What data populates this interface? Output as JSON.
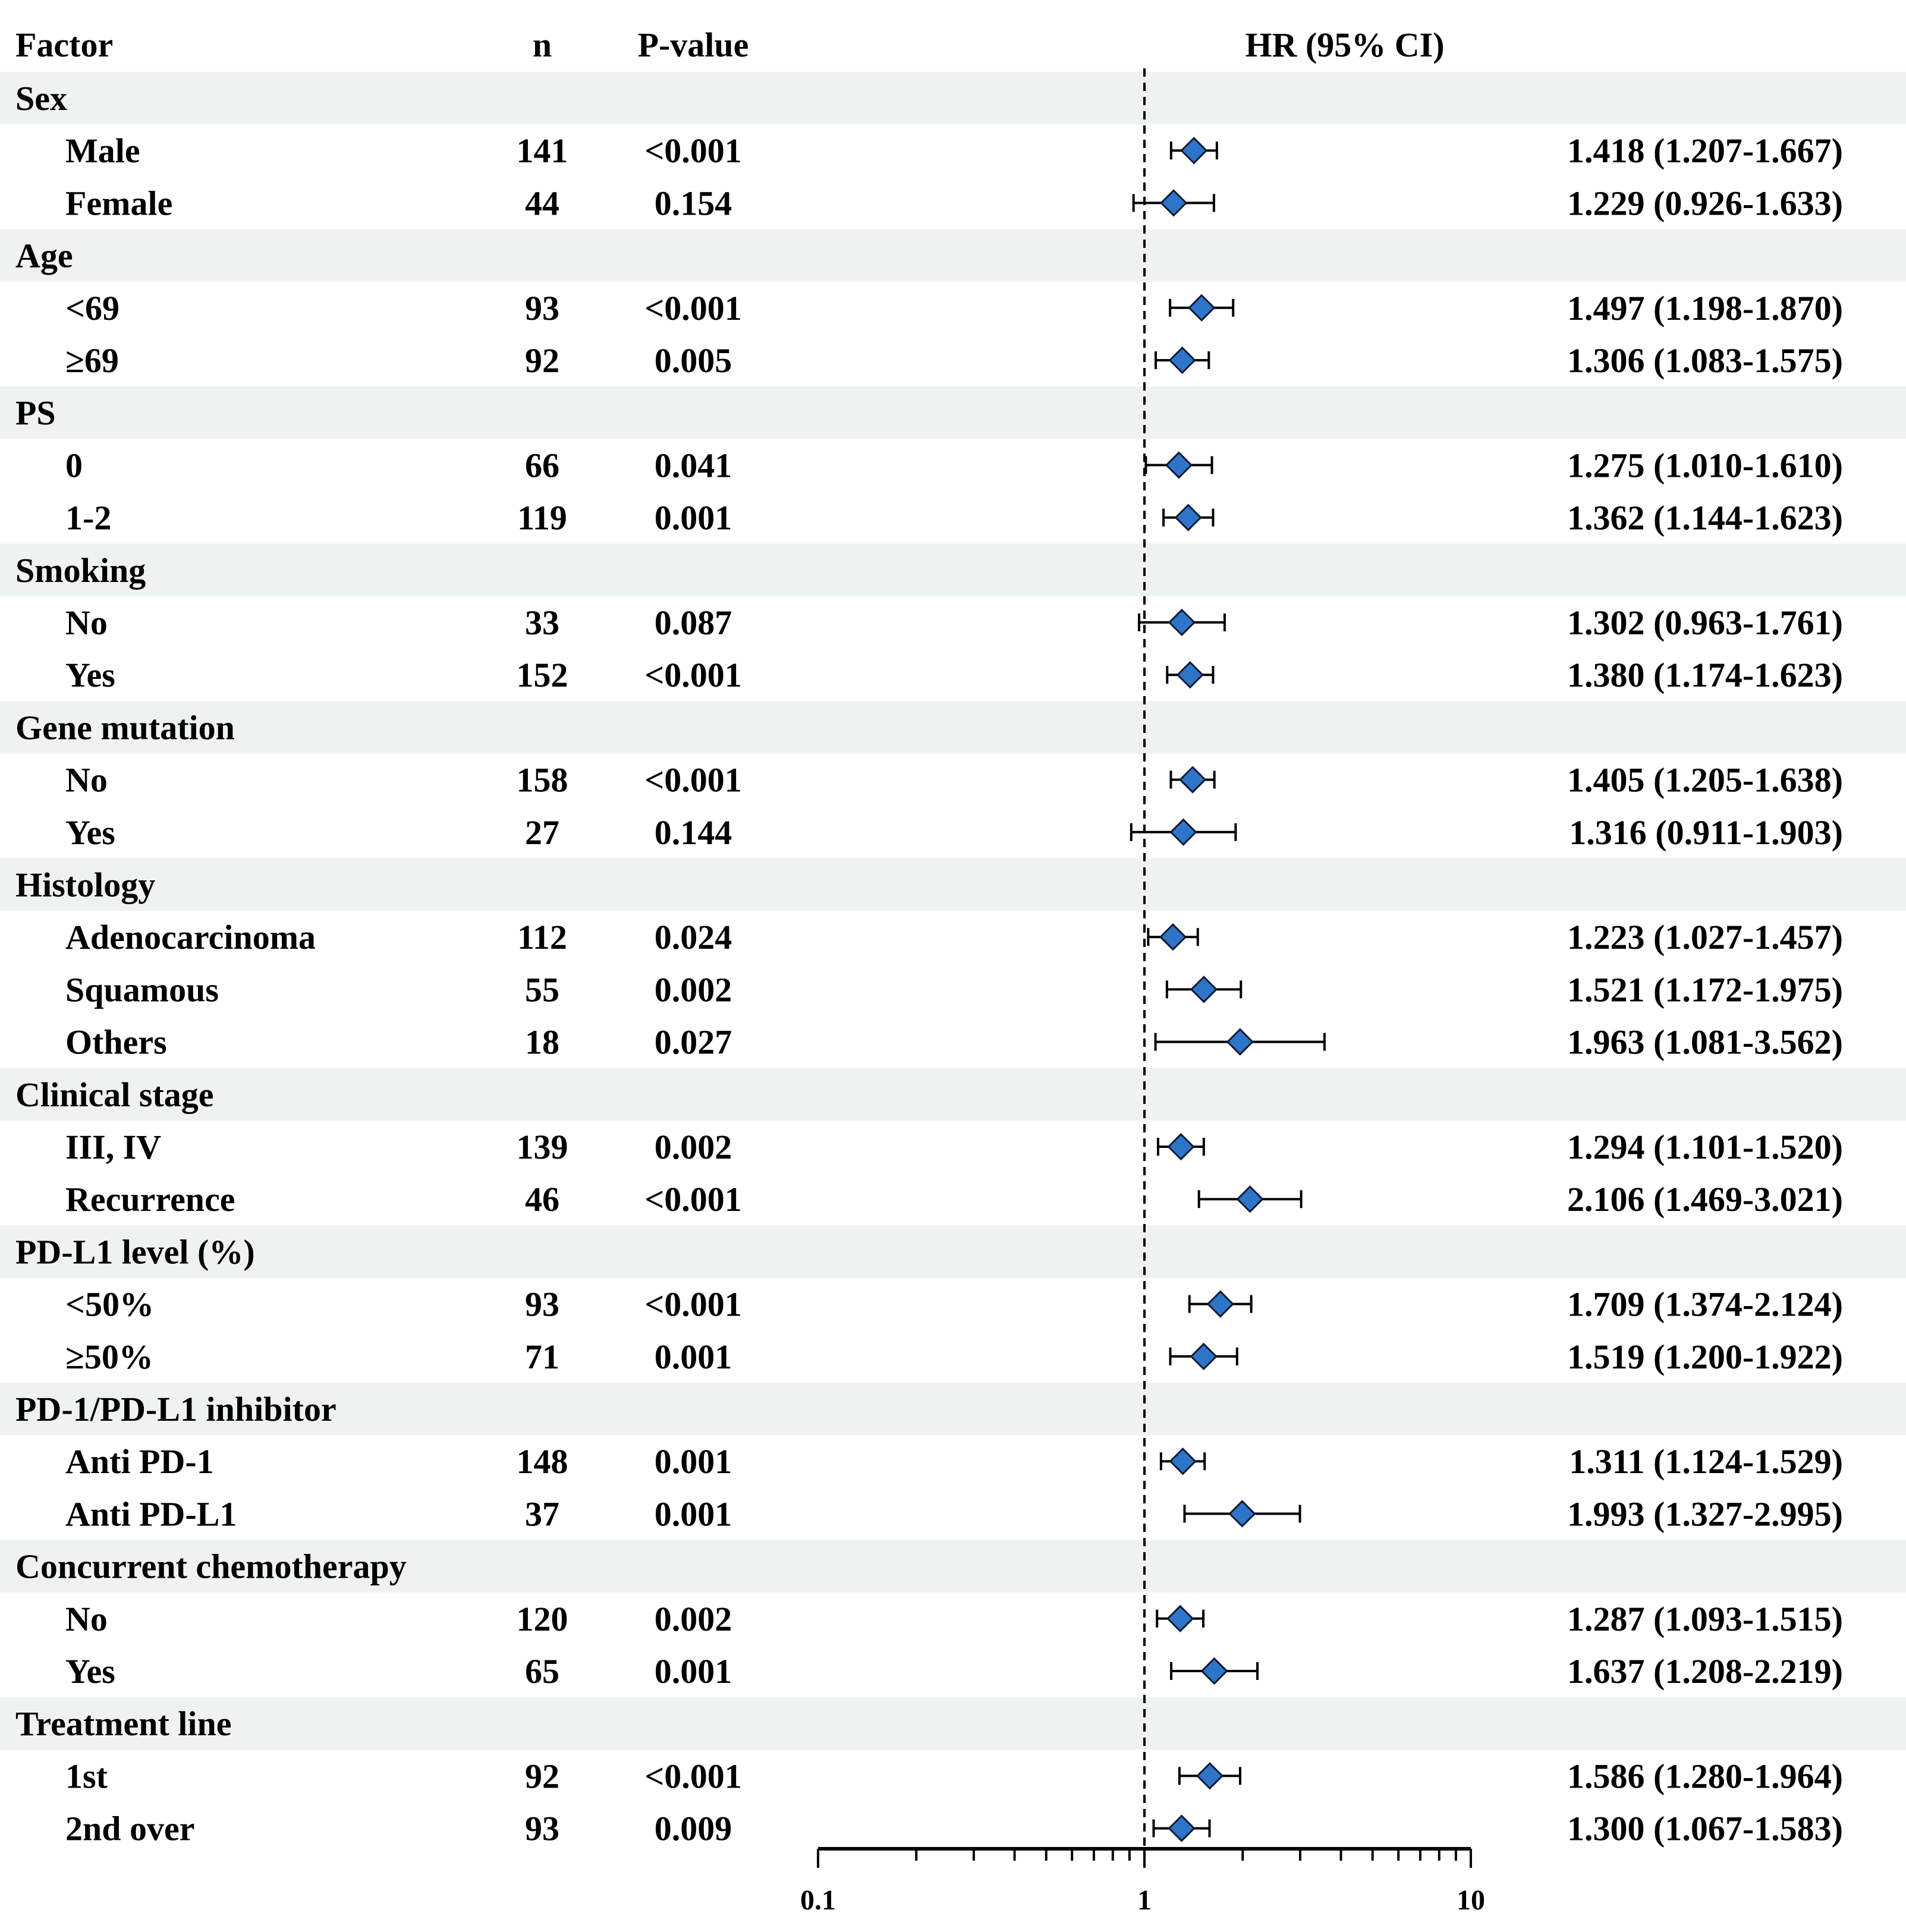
{
  "headers": {
    "factor": "Factor",
    "n": "n",
    "pvalue": "P-value",
    "hr": "HR (95% CI)"
  },
  "colors": {
    "band": "#eef2f1",
    "marker_fill": "#2e75c9",
    "marker_stroke": "#0a1a33",
    "line": "#000000"
  },
  "chart_data": {
    "type": "forest",
    "x_scale": "log",
    "xlim": [
      0.1,
      10
    ],
    "x_ticks": [
      "0.1",
      "1",
      "10"
    ],
    "reference_line": 1,
    "groups": [
      {
        "label": "Sex",
        "rows": [
          {
            "label": "Male",
            "n": "141",
            "p": "<0.001",
            "hr": 1.418,
            "lo": 1.207,
            "hi": 1.667,
            "ci_text": "1.418 (1.207-1.667)"
          },
          {
            "label": "Female",
            "n": "44",
            "p": "0.154",
            "hr": 1.229,
            "lo": 0.926,
            "hi": 1.633,
            "ci_text": "1.229 (0.926-1.633)"
          }
        ]
      },
      {
        "label": "Age",
        "rows": [
          {
            "label": "<69",
            "n": "93",
            "p": "<0.001",
            "hr": 1.497,
            "lo": 1.198,
            "hi": 1.87,
            "ci_text": "1.497 (1.198-1.870)"
          },
          {
            "label": "≥69",
            "n": "92",
            "p": "0.005",
            "hr": 1.306,
            "lo": 1.083,
            "hi": 1.575,
            "ci_text": "1.306 (1.083-1.575)"
          }
        ]
      },
      {
        "label": "PS",
        "rows": [
          {
            "label": "0",
            "n": "66",
            "p": "0.041",
            "hr": 1.275,
            "lo": 1.01,
            "hi": 1.61,
            "ci_text": "1.275 (1.010-1.610)"
          },
          {
            "label": "1-2",
            "n": "119",
            "p": "0.001",
            "hr": 1.362,
            "lo": 1.144,
            "hi": 1.623,
            "ci_text": "1.362 (1.144-1.623)"
          }
        ]
      },
      {
        "label": "Smoking",
        "rows": [
          {
            "label": "No",
            "n": "33",
            "p": "0.087",
            "hr": 1.302,
            "lo": 0.963,
            "hi": 1.761,
            "ci_text": "1.302 (0.963-1.761)"
          },
          {
            "label": "Yes",
            "n": "152",
            "p": "<0.001",
            "hr": 1.38,
            "lo": 1.174,
            "hi": 1.623,
            "ci_text": "1.380 (1.174-1.623)"
          }
        ]
      },
      {
        "label": "Gene mutation",
        "rows": [
          {
            "label": "No",
            "n": "158",
            "p": "<0.001",
            "hr": 1.405,
            "lo": 1.205,
            "hi": 1.638,
            "ci_text": "1.405 (1.205-1.638)"
          },
          {
            "label": "Yes",
            "n": "27",
            "p": "0.144",
            "hr": 1.316,
            "lo": 0.911,
            "hi": 1.903,
            "ci_text": "1.316 (0.911-1.903)"
          }
        ]
      },
      {
        "label": "Histology",
        "rows": [
          {
            "label": "Adenocarcinoma",
            "n": "112",
            "p": "0.024",
            "hr": 1.223,
            "lo": 1.027,
            "hi": 1.457,
            "ci_text": "1.223 (1.027-1.457)"
          },
          {
            "label": "Squamous",
            "n": "55",
            "p": "0.002",
            "hr": 1.521,
            "lo": 1.172,
            "hi": 1.975,
            "ci_text": "1.521 (1.172-1.975)"
          },
          {
            "label": "Others",
            "n": "18",
            "p": "0.027",
            "hr": 1.963,
            "lo": 1.081,
            "hi": 3.562,
            "ci_text": "1.963 (1.081-3.562)"
          }
        ]
      },
      {
        "label": "Clinical stage",
        "rows": [
          {
            "label": "III, IV",
            "n": "139",
            "p": "0.002",
            "hr": 1.294,
            "lo": 1.101,
            "hi": 1.52,
            "ci_text": "1.294 (1.101-1.520)"
          },
          {
            "label": "Recurrence",
            "n": "46",
            "p": "<0.001",
            "hr": 2.106,
            "lo": 1.469,
            "hi": 3.021,
            "ci_text": "2.106 (1.469-3.021)"
          }
        ]
      },
      {
        "label": "PD-L1 level (%)",
        "rows": [
          {
            "label": "<50%",
            "n": "93",
            "p": "<0.001",
            "hr": 1.709,
            "lo": 1.374,
            "hi": 2.124,
            "ci_text": "1.709 (1.374-2.124)"
          },
          {
            "label": "≥50%",
            "n": "71",
            "p": "0.001",
            "hr": 1.519,
            "lo": 1.2,
            "hi": 1.922,
            "ci_text": "1.519 (1.200-1.922)"
          }
        ]
      },
      {
        "label": "PD-1/PD-L1 inhibitor",
        "rows": [
          {
            "label": "Anti PD-1",
            "n": "148",
            "p": "0.001",
            "hr": 1.311,
            "lo": 1.124,
            "hi": 1.529,
            "ci_text": "1.311 (1.124-1.529)"
          },
          {
            "label": "Anti PD-L1",
            "n": "37",
            "p": "0.001",
            "hr": 1.993,
            "lo": 1.327,
            "hi": 2.995,
            "ci_text": "1.993 (1.327-2.995)"
          }
        ]
      },
      {
        "label": "Concurrent chemotherapy",
        "rows": [
          {
            "label": "No",
            "n": "120",
            "p": "0.002",
            "hr": 1.287,
            "lo": 1.093,
            "hi": 1.515,
            "ci_text": "1.287 (1.093-1.515)"
          },
          {
            "label": "Yes",
            "n": "65",
            "p": "0.001",
            "hr": 1.637,
            "lo": 1.208,
            "hi": 2.219,
            "ci_text": "1.637 (1.208-2.219)"
          }
        ]
      },
      {
        "label": "Treatment line",
        "rows": [
          {
            "label": "1st",
            "n": "92",
            "p": "<0.001",
            "hr": 1.586,
            "lo": 1.28,
            "hi": 1.964,
            "ci_text": "1.586 (1.280-1.964)"
          },
          {
            "label": "2nd over",
            "n": "93",
            "p": "0.009",
            "hr": 1.3,
            "lo": 1.067,
            "hi": 1.583,
            "ci_text": "1.300 (1.067-1.583)"
          }
        ]
      }
    ]
  }
}
